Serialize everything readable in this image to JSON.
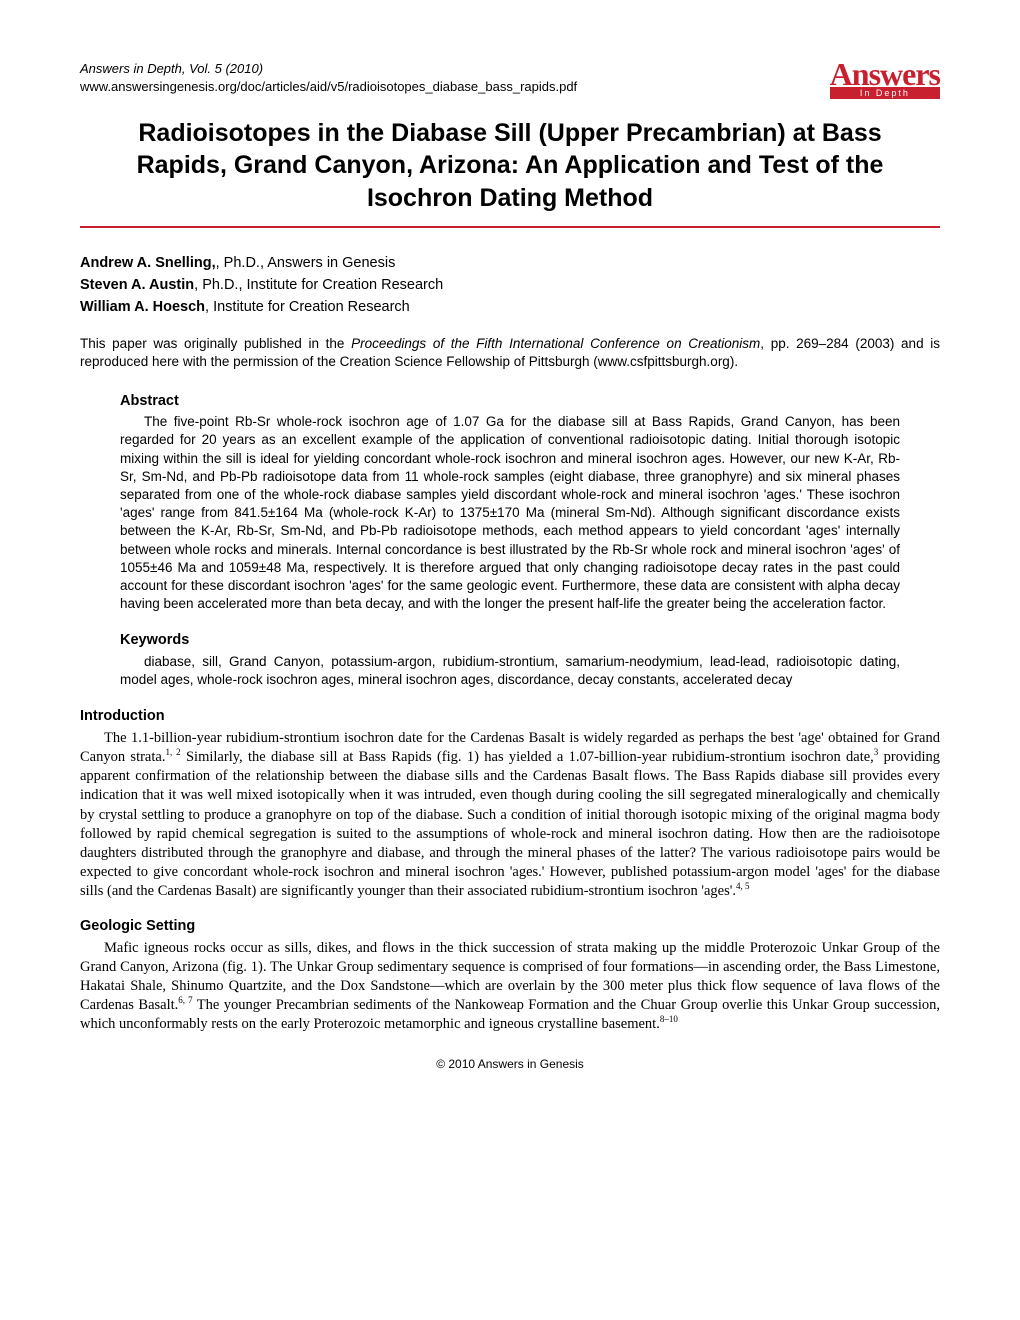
{
  "header": {
    "journal_line": "Answers in Depth, Vol. 5 (2010)",
    "url_line": "www.answersingenesis.org/doc/articles/aid/v5/radioisotopes_diabase_bass_rapids.pdf",
    "logo_text": "Answers",
    "logo_sub": "In Depth"
  },
  "title": "Radioisotopes in the Diabase Sill (Upper Precambrian) at Bass Rapids, Grand Canyon, Arizona: An Application and Test of the Isochron Dating Method",
  "authors": [
    {
      "name": "Andrew A. Snelling,",
      "cred": ", Ph.D., Answers in Genesis"
    },
    {
      "name": "Steven A. Austin",
      "cred": ", Ph.D., Institute for Creation Research"
    },
    {
      "name": "William A. Hoesch",
      "cred": ", Institute for Creation Research"
    }
  ],
  "repub_note_pre": "This paper was originally published in the ",
  "repub_note_ital": "Proceedings of the Fifth International Conference on Creationism",
  "repub_note_post": ", pp. 269–284 (2003) and is reproduced here with the permission of the Creation Science Fellowship of Pittsburgh (www.csfpittsburgh.org).",
  "abstract": {
    "label": "Abstract",
    "text": "The five-point Rb-Sr whole-rock isochron age of 1.07 Ga for the diabase sill at Bass Rapids, Grand Canyon, has been regarded for 20 years as an excellent example of the application of conventional radioisotopic dating. Initial thorough isotopic mixing within the sill is ideal for yielding concordant whole-rock isochron and mineral isochron ages. However, our new K-Ar, Rb-Sr, Sm-Nd, and Pb-Pb radioisotope data from 11 whole-rock samples (eight diabase, three granophyre) and six mineral phases separated from one of the whole-rock diabase samples yield discordant whole-rock and mineral isochron 'ages.' These isochron 'ages' range from 841.5±164 Ma (whole-rock K-Ar) to 1375±170 Ma (mineral Sm-Nd). Although significant discordance exists between the K-Ar, Rb-Sr, Sm-Nd, and Pb-Pb radioisotope methods, each method appears to yield concordant 'ages' internally between whole rocks and minerals. Internal concordance is best illustrated by the Rb-Sr whole rock and mineral isochron 'ages' of 1055±46 Ma and 1059±48 Ma, respectively. It is therefore argued that only changing radioisotope decay rates in the past could account for these discordant isochron 'ages' for the same geologic event. Furthermore, these data are consistent with alpha decay having been accelerated more than beta decay, and with the longer the present half-life the greater being the acceleration factor."
  },
  "keywords": {
    "label": "Keywords",
    "text": "diabase, sill, Grand Canyon, potassium-argon, rubidium-strontium, samarium-neodymium, lead-lead, radioisotopic dating, model ages, whole-rock isochron ages, mineral isochron ages, discordance, decay constants, accelerated decay"
  },
  "sections": [
    {
      "label": "Introduction",
      "html": "The 1.1-billion-year rubidium-strontium isochron date for the Cardenas Basalt is widely regarded as perhaps the best 'age' obtained for Grand Canyon strata.<sup>1, 2</sup> Similarly, the diabase sill at Bass Rapids (fig. 1) has yielded a 1.07-billion-year rubidium-strontium isochron date,<sup>3</sup> providing apparent confirmation of the relationship between the diabase sills and the Cardenas Basalt flows. The Bass Rapids diabase sill provides every indication that it was well mixed isotopically when it was intruded, even though during cooling the sill segregated mineralogically and chemically by crystal settling to produce a granophyre on top of the diabase. Such a condition of initial thorough isotopic mixing of the original magma body followed by rapid chemical segregation is suited to the assumptions of whole-rock and mineral isochron dating. How then are the radioisotope daughters distributed through the granophyre and diabase, and through the mineral phases of the latter? The various radioisotope pairs would be expected to give concordant whole-rock isochron and mineral isochron 'ages.' However, published potassium-argon model 'ages' for the diabase sills (and the Cardenas Basalt) are significantly younger than their associated rubidium-strontium isochron 'ages'.<sup>4, 5</sup>"
    },
    {
      "label": "Geologic Setting",
      "html": "Mafic igneous rocks occur as sills, dikes, and flows in the thick succession of strata making up the middle Proterozoic Unkar Group of the Grand Canyon, Arizona (fig. 1). The Unkar Group sedimentary sequence is comprised of four formations—in ascending order, the Bass Limestone, Hakatai Shale, Shinumo Quartzite, and the Dox Sandstone—which are overlain by the 300 meter plus thick flow sequence of lava flows of the Cardenas Basalt.<sup>6, 7</sup> The younger Precambrian sediments of the Nankoweap Formation and the Chuar Group overlie this Unkar Group succession, which unconformably rests on the early Proterozoic metamorphic and igneous crystalline basement.<sup>8–10</sup>"
    }
  ],
  "footer": "© 2010 Answers in Genesis",
  "colors": {
    "accent": "#c8202f",
    "text": "#000000",
    "background": "#ffffff"
  },
  "typography": {
    "body_font": "Century Schoolbook / serif",
    "sans_font": "Arial / Helvetica",
    "title_size_pt": 19,
    "body_size_pt": 11,
    "abstract_size_pt": 10
  }
}
